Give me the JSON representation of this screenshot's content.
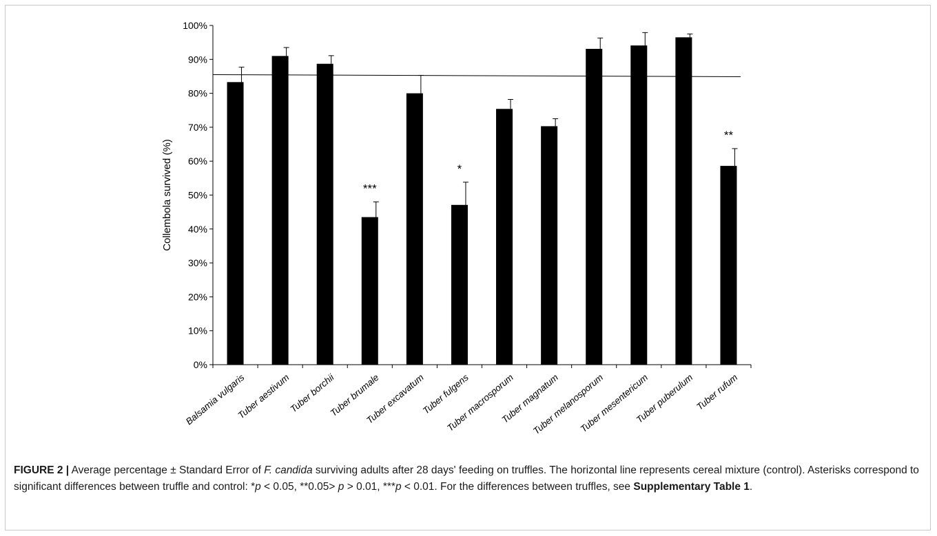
{
  "chart_data": {
    "type": "bar",
    "ylabel": "Collembola survived (%)",
    "ylim": [
      0,
      100
    ],
    "yticks": [
      "0%",
      "10%",
      "20%",
      "30%",
      "40%",
      "50%",
      "60%",
      "70%",
      "80%",
      "90%",
      "100%"
    ],
    "categories": [
      "Balsamia vulgaris",
      "Tuber aestivum",
      "Tuber borchii",
      "Tuber brumale",
      "Tuber excavatum",
      "Tuber fulgens",
      "Tuber macrosporum",
      "Tuber magnatum",
      "Tuber melanosporum",
      "Tuber mesentericum",
      "Tuber puberulum",
      "Tuber rufum"
    ],
    "values": [
      83.3,
      91.0,
      88.7,
      43.5,
      80.0,
      47.1,
      75.4,
      70.3,
      93.1,
      94.1,
      96.5,
      58.6
    ],
    "errors": [
      4.4,
      2.5,
      2.4,
      4.5,
      5.3,
      6.7,
      2.8,
      2.2,
      3.2,
      3.8,
      1.0,
      5.1
    ],
    "significance": [
      "",
      "",
      "",
      "***",
      "",
      "*",
      "",
      "",
      "",
      "",
      "",
      "**"
    ],
    "control_line": {
      "start": 85.5,
      "end": 84.9
    },
    "bar_color": "#000000"
  },
  "caption": {
    "label": "FIGURE 2 |",
    "text1": " Average percentage ± Standard Error of ",
    "species": "F. candida",
    "text2": " surviving adults after 28 days' feeding on truffles. The horizontal line represents cereal mixture (control). Asterisks correspond to significant differences between truffle and control: *",
    "p1": "p",
    "text3": " < 0.05, **0.05> ",
    "p2": "p",
    "text4": " > 0.01, ***",
    "p3": "p",
    "text5": " < 0.01. For the differences between truffles, see ",
    "ref": "Supplementary Table 1",
    "end": "."
  }
}
